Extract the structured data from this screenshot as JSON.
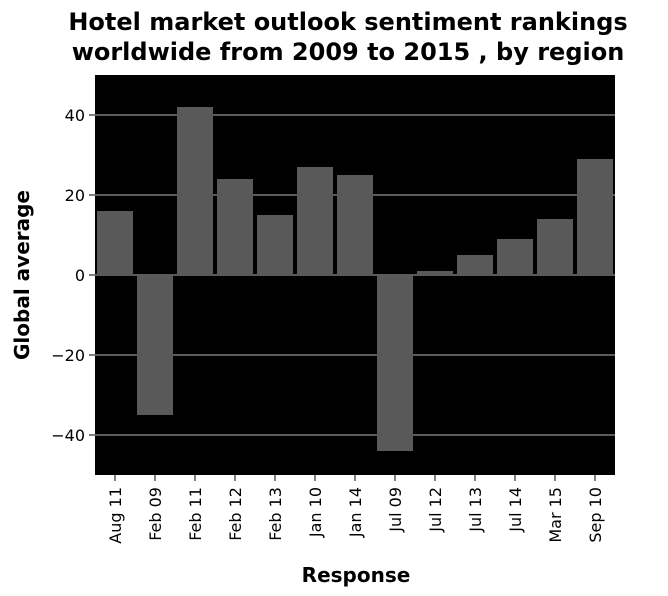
{
  "chart_data": {
    "type": "bar",
    "title_lines": [
      "Hotel market outlook sentiment rankings",
      "worldwide from 2009 to 2015 , by region"
    ],
    "xlabel": "Response",
    "ylabel": "Global average",
    "categories": [
      "Aug 11",
      "Feb 09",
      "Feb 11",
      "Feb 12",
      "Feb 13",
      "Jan 10",
      "Jan 14",
      "Jul 09",
      "Jul 12",
      "Jul 13",
      "Jul 14",
      "Mar 15",
      "Sep 10"
    ],
    "values": [
      16,
      -35,
      42,
      24,
      15,
      27,
      25,
      -44,
      1,
      5,
      9,
      14,
      29
    ],
    "ylim": [
      -50,
      50
    ],
    "yticks": [
      -40,
      -20,
      0,
      20,
      40
    ],
    "grid": true,
    "colors": {
      "bar": "#595959",
      "background": "#000000",
      "grid": "#b3b3b3"
    }
  }
}
